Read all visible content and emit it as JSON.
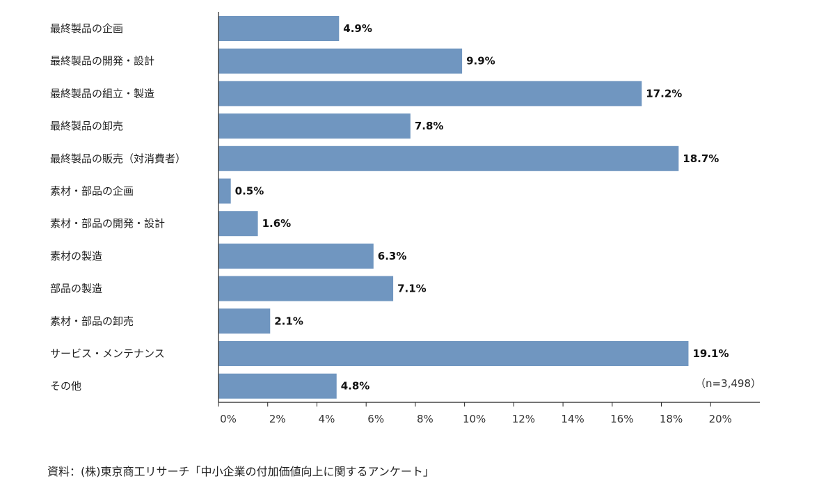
{
  "chart_data": {
    "type": "bar",
    "orientation": "horizontal",
    "categories": [
      "最終製品の企画",
      "最終製品の開発・設計",
      "最終製品の組立・製造",
      "最終製品の卸売",
      "最終製品の販売（対消費者）",
      "素材・部品の企画",
      "素材・部品の開発・設計",
      "素材の製造",
      "部品の製造",
      "素材・部品の卸売",
      "サービス・メンテナンス",
      "その他"
    ],
    "values": [
      4.9,
      9.9,
      17.2,
      7.8,
      18.7,
      0.5,
      1.6,
      6.3,
      7.1,
      2.1,
      19.1,
      4.8
    ],
    "value_labels": [
      "4.9%",
      "9.9%",
      "17.2%",
      "7.8%",
      "18.7%",
      "0.5%",
      "1.6%",
      "6.3%",
      "7.1%",
      "2.1%",
      "19.1%",
      "4.8%"
    ],
    "xlim": [
      0,
      22
    ],
    "x_ticks": [
      0,
      2,
      4,
      6,
      8,
      10,
      12,
      14,
      16,
      18,
      20
    ],
    "x_tick_labels": [
      "0%",
      "2%",
      "4%",
      "6%",
      "8%",
      "10%",
      "12%",
      "14%",
      "16%",
      "18%",
      "20%"
    ],
    "sample_note": "（n=3,498）",
    "bar_color": "#7096c0",
    "grid": false
  },
  "source": "資料：(株)東京商工リサーチ「中小企業の付加価値向上に関するアンケート」"
}
